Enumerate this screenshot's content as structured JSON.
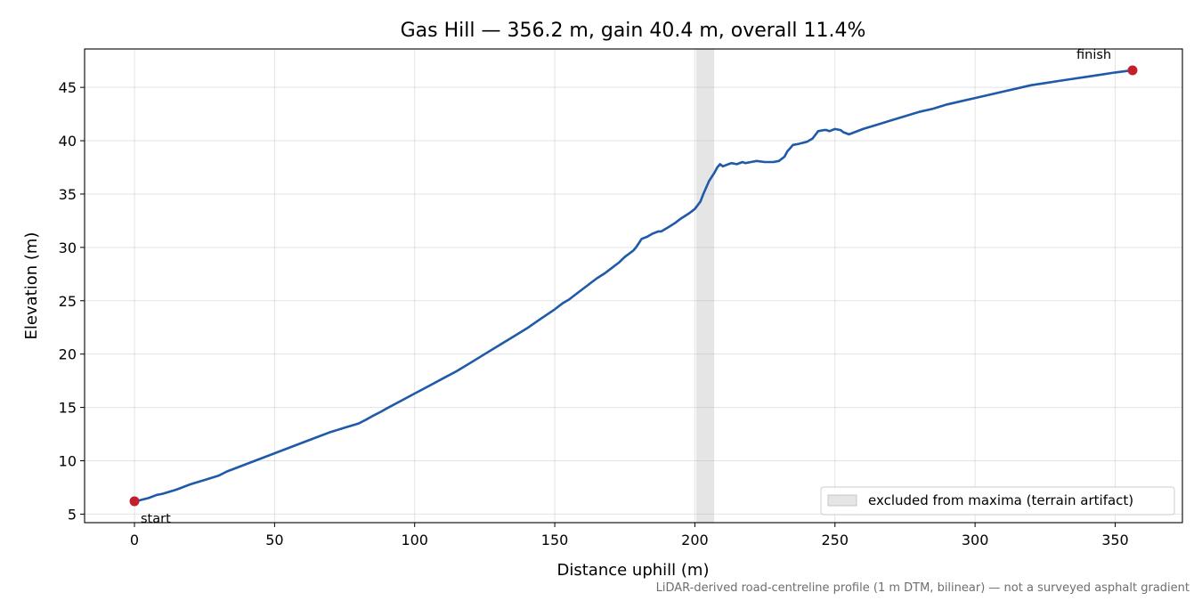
{
  "chart_data": {
    "type": "line",
    "title": "Gas Hill — 356.2 m, gain 40.4 m, overall 11.4%",
    "xlabel": "Distance uphill (m)",
    "ylabel": "Elevation (m)",
    "xlim": [
      -17.8,
      374.0
    ],
    "ylim": [
      4.2,
      48.6
    ],
    "xticks": [
      0,
      50,
      100,
      150,
      200,
      250,
      300,
      350
    ],
    "yticks": [
      5,
      10,
      15,
      20,
      25,
      30,
      35,
      40,
      45
    ],
    "grid": true,
    "line_color": "#1f5aa8",
    "marker_color": "#c0202a",
    "excluded_band_color": "#d3d3d3",
    "excluded_band": {
      "x0": 200.5,
      "x1": 206.9,
      "label": "excluded from maxima (terrain artifact)"
    },
    "legend_position": "lower-right",
    "series": [
      {
        "x": [
          0,
          2,
          5,
          8,
          10,
          15,
          20,
          25,
          30,
          33,
          35,
          40,
          45,
          50,
          55,
          60,
          65,
          70,
          75,
          80,
          83,
          85,
          88,
          90,
          95,
          100,
          105,
          110,
          115,
          120,
          125,
          130,
          135,
          140,
          145,
          150,
          153,
          155,
          158,
          160,
          163,
          165,
          168,
          170,
          173,
          175,
          178,
          179,
          180,
          181,
          183,
          185,
          187,
          188,
          190,
          193,
          195,
          198,
          200,
          202,
          203,
          205,
          207,
          208,
          209,
          210,
          211,
          212,
          213,
          215,
          217,
          218,
          220,
          222,
          225,
          228,
          230,
          232,
          233,
          235,
          237,
          240,
          242,
          244,
          246,
          247,
          248,
          250,
          252,
          253,
          255,
          257,
          260,
          265,
          270,
          275,
          280,
          285,
          290,
          295,
          300,
          305,
          310,
          315,
          320,
          325,
          330,
          335,
          340,
          345,
          350,
          353,
          356.2
        ],
        "y": [
          6.2,
          6.3,
          6.5,
          6.8,
          6.9,
          7.3,
          7.8,
          8.2,
          8.6,
          9.0,
          9.2,
          9.7,
          10.2,
          10.7,
          11.2,
          11.7,
          12.2,
          12.7,
          13.1,
          13.5,
          13.9,
          14.2,
          14.6,
          14.9,
          15.6,
          16.3,
          17.0,
          17.7,
          18.4,
          19.2,
          20.0,
          20.8,
          21.6,
          22.4,
          23.3,
          24.2,
          24.8,
          25.1,
          25.7,
          26.1,
          26.7,
          27.1,
          27.6,
          28.0,
          28.6,
          29.1,
          29.7,
          30.0,
          30.4,
          30.8,
          31.0,
          31.3,
          31.5,
          31.5,
          31.8,
          32.3,
          32.7,
          33.2,
          33.6,
          34.3,
          35.0,
          36.2,
          37.0,
          37.5,
          37.8,
          37.6,
          37.7,
          37.8,
          37.9,
          37.8,
          38.0,
          37.9,
          38.0,
          38.1,
          38.0,
          38.0,
          38.1,
          38.5,
          39.0,
          39.6,
          39.7,
          39.9,
          40.2,
          40.9,
          41.0,
          41.0,
          40.9,
          41.1,
          41.0,
          40.8,
          40.6,
          40.8,
          41.1,
          41.5,
          41.9,
          42.3,
          42.7,
          43.0,
          43.4,
          43.7,
          44.0,
          44.3,
          44.6,
          44.9,
          45.2,
          45.4,
          45.6,
          45.8,
          46.0,
          46.2,
          46.4,
          46.5,
          46.6
        ]
      }
    ],
    "markers": [
      {
        "x": 0,
        "y": 6.2,
        "label": "start"
      },
      {
        "x": 356.2,
        "y": 46.6,
        "label": "finish"
      }
    ],
    "footnote": "LiDAR-derived road-centreline profile (1 m DTM, bilinear) — not a surveyed asphalt gradient"
  }
}
